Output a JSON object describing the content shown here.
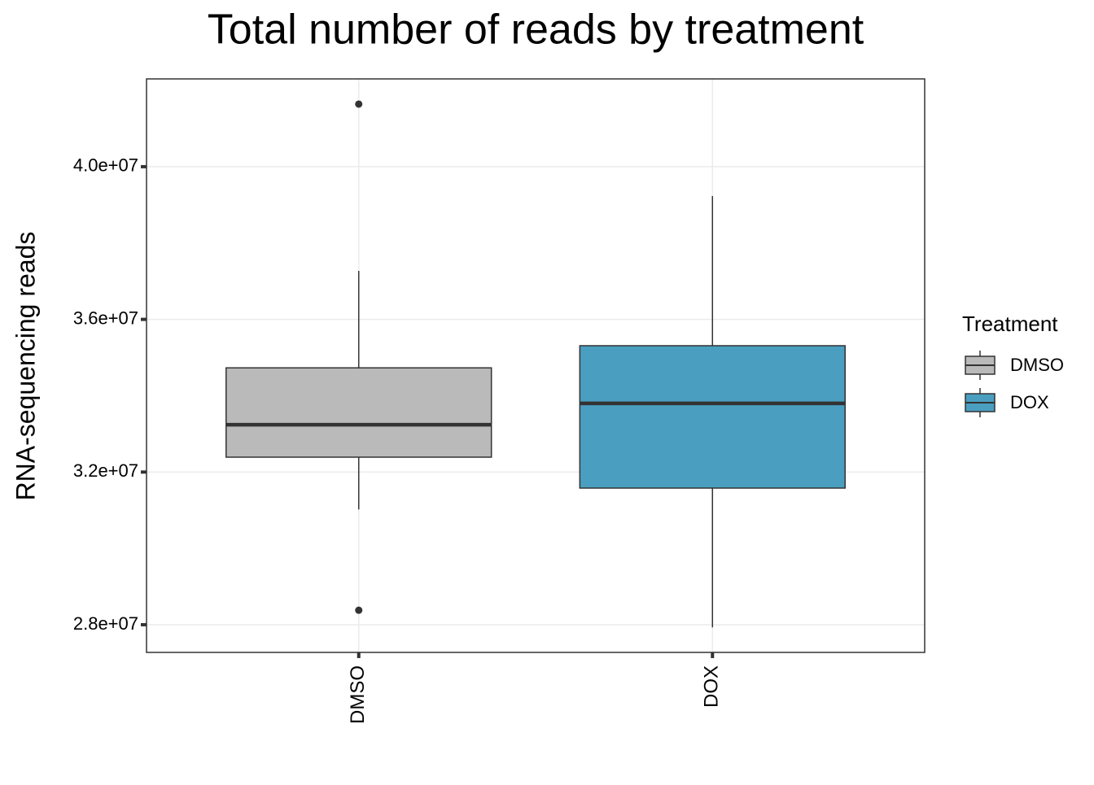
{
  "chart_data": {
    "type": "boxplot",
    "title": "Total number of reads by treatment",
    "x_label": "",
    "y_label": "RNA-sequencing reads",
    "categories": [
      "DMSO",
      "DOX"
    ],
    "legend_title": "Treatment",
    "series": [
      {
        "name": "DMSO",
        "color": "#bababa",
        "whisker_low": 31020000,
        "q1": 32390000,
        "median": 33240000,
        "q3": 34730000,
        "whisker_high": 37270000,
        "outliers": [
          41640000,
          28380000
        ]
      },
      {
        "name": "DOX",
        "color": "#4a9fc0",
        "whisker_low": 27930000,
        "q1": 31580000,
        "median": 33800000,
        "q3": 35310000,
        "whisker_high": 39230000,
        "outliers": []
      }
    ],
    "ylim": [
      27275000,
      42300000
    ],
    "yticks": [
      {
        "value": 28000000,
        "label": "2.8e+07"
      },
      {
        "value": 32000000,
        "label": "3.2e+07"
      },
      {
        "value": 36000000,
        "label": "3.6e+07"
      },
      {
        "value": 40000000,
        "label": "4.0e+07"
      }
    ],
    "grid": true,
    "legend": "right"
  }
}
